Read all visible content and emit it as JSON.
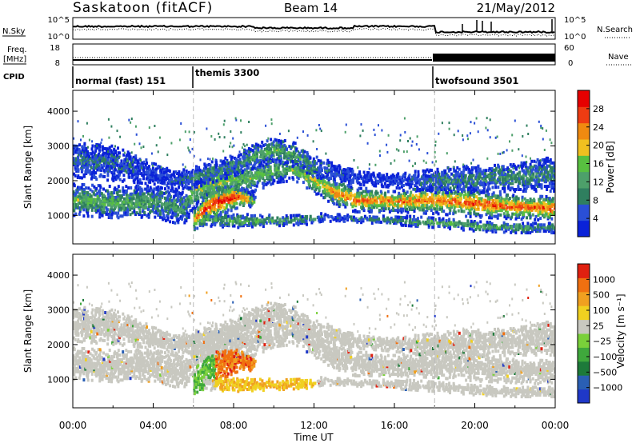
{
  "header": {
    "station": "Saskatoon (fitACF)",
    "beam": "Beam 14",
    "date": "21/May/2012"
  },
  "chart_data": {
    "type": "heatmap",
    "xlabel": "Time UT",
    "x_ticks": [
      "00:00",
      "04:00",
      "08:00",
      "12:00",
      "16:00",
      "20:00",
      "00:00"
    ],
    "xlim_hours": [
      0,
      24
    ],
    "ylabel": "Slant Range [km]",
    "ylim_km": [
      180,
      4600
    ],
    "y_ticks": [
      1000,
      2000,
      3000,
      4000
    ],
    "noise": {
      "left_label": "N.Sky",
      "left_ticks": [
        "10^5",
        "10^0"
      ],
      "right_label": "N.Search",
      "right_ticks": [
        "10^5",
        "10^0"
      ]
    },
    "freq": {
      "left_label_1": "Freq.",
      "left_label_2": "[MHz]",
      "left_ticks": [
        "18",
        "8"
      ],
      "right_label": "Nave",
      "right_ticks": [
        "60",
        "0"
      ]
    },
    "cpid": {
      "label": "CPID",
      "segments": [
        {
          "name": "normal (fast) 151",
          "start_h": 0
        },
        {
          "name": "themis 3300",
          "start_h": 6
        },
        {
          "name": "twofsound 3501",
          "start_h": 18
        }
      ]
    },
    "mode_changes_h": [
      6,
      18
    ],
    "power": {
      "colorbar_label": "Power [dB]",
      "colorbar_ticks": [
        "28",
        "24",
        "20",
        "16",
        "12",
        "8",
        "4"
      ],
      "colors": [
        "#0a22d8",
        "#2a4fd6",
        "#2f7f5f",
        "#4da06a",
        "#58c040",
        "#f0c020",
        "#f08a10",
        "#ee3c12",
        "#e60000"
      ]
    },
    "velocity": {
      "colorbar_label": "Velocity [m s⁻¹]",
      "colorbar_ticks": [
        "1000",
        "500",
        "100",
        "25",
        "−25",
        "−100",
        "−500",
        "−1000"
      ],
      "colors": [
        "#1f38c8",
        "#2a5fb4",
        "#1d7a3a",
        "#3fa83c",
        "#7ad03a",
        "#c8c8c0",
        "#f0d020",
        "#f0a020",
        "#f07010",
        "#e02010"
      ],
      "ground_scatter_color": "#c8c8c0"
    },
    "echo_bands": [
      {
        "name": "main",
        "h": [
          0,
          2,
          4,
          5.5,
          6,
          7,
          8.5,
          10,
          11,
          12,
          13,
          14,
          16,
          18,
          20,
          22,
          24
        ],
        "center_km": [
          1450,
          1380,
          1400,
          1200,
          1700,
          1950,
          2050,
          2300,
          2300,
          2000,
          1650,
          1450,
          1400,
          1450,
          1350,
          1250,
          1200
        ],
        "width_km": [
          450,
          450,
          450,
          500,
          500,
          550,
          500,
          350,
          300,
          350,
          350,
          350,
          300,
          400,
          400,
          350,
          350
        ],
        "strength": [
          0.45,
          0.45,
          0.4,
          0.35,
          0.5,
          0.55,
          0.5,
          0.45,
          0.5,
          0.6,
          0.75,
          0.8,
          0.8,
          0.8,
          0.85,
          0.85,
          0.85
        ]
      },
      {
        "name": "upper",
        "h": [
          0,
          2,
          4,
          5,
          6,
          8,
          9,
          10,
          11,
          12,
          14,
          16,
          18,
          20,
          22,
          24
        ],
        "center_km": [
          2600,
          2500,
          2200,
          2000,
          2100,
          2450,
          2700,
          2900,
          2750,
          2400,
          2100,
          2000,
          2000,
          2050,
          2100,
          2200
        ],
        "width_km": [
          500,
          500,
          300,
          250,
          300,
          300,
          350,
          350,
          350,
          300,
          200,
          200,
          350,
          400,
          400,
          500
        ],
        "strength": [
          0.25,
          0.2,
          0.15,
          0.15,
          0.3,
          0.3,
          0.4,
          0.45,
          0.4,
          0.3,
          0.1,
          0.1,
          0.3,
          0.3,
          0.35,
          0.3
        ]
      },
      {
        "name": "heating",
        "h": [
          6,
          6.5,
          7,
          7.5,
          8,
          8.5,
          9
        ],
        "center_km": [
          900,
          1150,
          1350,
          1450,
          1550,
          1500,
          1400
        ],
        "width_km": [
          400,
          450,
          450,
          400,
          350,
          250,
          150
        ],
        "strength": [
          0.7,
          0.85,
          0.95,
          1.0,
          0.95,
          0.8,
          0.5
        ]
      },
      {
        "name": "low",
        "h": [
          6.5,
          8,
          10,
          12,
          13,
          18,
          20,
          22,
          24
        ],
        "center_km": [
          900,
          850,
          850,
          900,
          950,
          800,
          700,
          650,
          650
        ],
        "width_km": [
          200,
          200,
          150,
          150,
          100,
          150,
          150,
          150,
          150
        ],
        "strength": [
          0.4,
          0.45,
          0.4,
          0.3,
          0.2,
          0.45,
          0.45,
          0.4,
          0.35
        ]
      }
    ]
  }
}
